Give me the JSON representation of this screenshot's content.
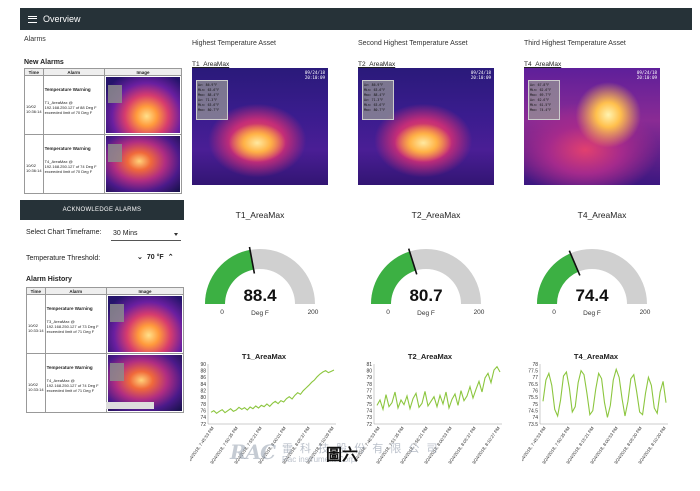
{
  "header": {
    "title": "Overview",
    "menu_icon": "hamburger-menu-icon",
    "bg": "#263238"
  },
  "alarms": {
    "section_label": "Alarms",
    "new_title": "New Alarms",
    "columns": [
      "Time",
      "Alarm",
      "Image"
    ],
    "rows": [
      {
        "time": "10/02 10:36:14",
        "type": "Temperature Warning",
        "desc": "T1_AreaMax @ 192.168.250.127 of 88 Deg F exceeded limit of 70 Deg F"
      },
      {
        "time": "10/02 10:36:14",
        "type": "Temperature Warning",
        "desc": "T4_AreaMax @ 192.168.250.127 of 74 Deg F exceeded limit of 70 Deg F"
      }
    ],
    "ack_button": "ACKNOWLEDGE ALARMS"
  },
  "controls": {
    "timeframe_label": "Select Chart Timeframe:",
    "timeframe_value": "30 Mins",
    "threshold_label": "Temperature Threshold:",
    "threshold_value": "70 °F"
  },
  "history": {
    "title": "Alarm History",
    "columns": [
      "Time",
      "Alarm",
      "Image"
    ],
    "rows": [
      {
        "time": "10/02 10:33:14",
        "type": "Temperature Warning",
        "desc": "T3_AreaMax @ 192.168.250.127 of 73 Deg F exceeded limit of 71 Deg F"
      },
      {
        "time": "10/02 10:33:14",
        "type": "Temperature Warning",
        "desc": "T4_AreaMax @ 192.168.250.127 of 74 Deg F exceeded limit of 71 Deg F"
      }
    ]
  },
  "assets": [
    {
      "heading": "Highest Temperature Asset",
      "cam_label": "T1_AreaMax",
      "stamp_date": "09/24/18",
      "stamp_time": "20:10:09",
      "overlay": [
        "Av:  86.9°F",
        "Min: 63.6°F",
        "Max: 88.4°F",
        "Av:  71.3°F",
        "Min: 63.6°F",
        "Max: 80.7°F"
      ],
      "gauge_title": "T1_AreaMax",
      "gauge_value": "88.4",
      "gauge_value_num": 88.4,
      "unit": "Deg F",
      "gauge_min": "0",
      "gauge_max": "200",
      "chart_title": "T1_AreaMax"
    },
    {
      "heading": "Second Highest Temperature Asset",
      "cam_label": "T2_AreaMax",
      "stamp_date": "09/24/18",
      "stamp_time": "20:10:09",
      "overlay": [
        "Av:  86.9°F",
        "Min: 63.6°F",
        "Max: 88.4°F",
        "Av:  71.3°F",
        "Min: 63.6°F",
        "Max: 80.7°F"
      ],
      "gauge_title": "T2_AreaMax",
      "gauge_value": "80.7",
      "gauge_value_num": 80.7,
      "unit": "Deg F",
      "gauge_min": "0",
      "gauge_max": "200",
      "chart_title": "T2_AreaMax"
    },
    {
      "heading": "Third Highest Temperature Asset",
      "cam_label": "T4_AreaMax",
      "stamp_date": "09/24/18",
      "stamp_time": "20:10:09",
      "overlay": [
        "Av:  67.8°F",
        "Min: 62.6°F",
        "Max: 69.7°F",
        "Av:  62.6°F",
        "Min: 61.5°F",
        "Max: 74.4°F"
      ],
      "gauge_title": "T4_AreaMax",
      "gauge_value": "74.4",
      "gauge_value_num": 74.4,
      "unit": "Deg F",
      "gauge_min": "0",
      "gauge_max": "200",
      "chart_title": "T4_AreaMax"
    }
  ],
  "colors": {
    "gauge_fill": "#3cb043",
    "gauge_track": "#d0d0d0",
    "line": "#8cc63f",
    "dark": "#263238"
  },
  "watermark": {
    "logo": "RAC",
    "name": "雷 科 技 股 份 有 限 公 司",
    "sub": "Rac instrument Corp.",
    "figure": "圖六"
  },
  "chart_data": [
    {
      "type": "line",
      "title": "T1_AreaMax",
      "ylim": [
        72,
        90
      ],
      "yticks": [
        72,
        74,
        76,
        78,
        80,
        82,
        84,
        86,
        88,
        90
      ],
      "xticks": [
        "9/24/2018, 7:45:53 PM",
        "9/24/2018, 7:50:35 PM",
        "9/24/2018, 7:55:21 PM",
        "9/24/2018, 8:00:01 PM",
        "9/24/2018, 8:05:37 PM",
        "9/24/2018, 8:10:09 PM"
      ],
      "series": [
        {
          "values": [
            75.5,
            76,
            75.2,
            75.8,
            76.3,
            75.4,
            76,
            76.6,
            75.8,
            76.2,
            77,
            76.4,
            76.9,
            76.2,
            77.1,
            76.6,
            77.4,
            76.8,
            77.6,
            77.2,
            78,
            77.3,
            78.2,
            78.8,
            78.1,
            79,
            78.6,
            79.6,
            80.2,
            79.5,
            80.6,
            81.4,
            80.9,
            82,
            82.8,
            83.6,
            84.5,
            85.2,
            86.2,
            87,
            87.6,
            88,
            87.4,
            87.8,
            88.2
          ]
        }
      ]
    },
    {
      "type": "line",
      "title": "T2_AreaMax",
      "ylim": [
        72,
        81
      ],
      "yticks": [
        72,
        73,
        74,
        75,
        76,
        77,
        78,
        79,
        80,
        81
      ],
      "xticks": [
        "9/24/2018, 7:46:53 PM",
        "9/24/2018, 7:51:35 PM",
        "9/24/2018, 7:56:21 PM",
        "9/24/2018, 8:00:53 PM",
        "9/24/2018, 8:05:37 PM",
        "9/24/2018, 8:10:27 PM"
      ],
      "series": [
        {
          "values": [
            74.8,
            75.6,
            74.2,
            76.4,
            74.6,
            75.2,
            76.8,
            74.4,
            75.6,
            74.9,
            76.2,
            74.3,
            75.8,
            76.6,
            74.5,
            75.1,
            76.9,
            74.7,
            75.4,
            76.1,
            74.6,
            76.3,
            75.0,
            76.8,
            74.4,
            75.7,
            76.5,
            74.8,
            77.0,
            75.5,
            76.2,
            77.6,
            75.9,
            77.2,
            78.4,
            76.8,
            78.9,
            79.6,
            78.2,
            80.1,
            80.6,
            79.8
          ]
        }
      ]
    },
    {
      "type": "line",
      "title": "T4_AreaMax",
      "ylim": [
        73.5,
        78
      ],
      "yticks": [
        73.5,
        74,
        74.5,
        75,
        75.5,
        76,
        76.5,
        77,
        77.5,
        78
      ],
      "xticks": [
        "9/24/2018, 7:45:53 PM",
        "9/24/2018, 7:50:35 PM",
        "9/24/2018, 8:15:21 PM",
        "9/24/2018, 8:00:53 PM",
        "9/24/2018, 8:05:20 PM",
        "9/24/2018, 8:10:20 PM"
      ],
      "series": [
        {
          "values": [
            75.2,
            76.8,
            77.3,
            76.4,
            74.6,
            74.1,
            75.3,
            77.1,
            77.4,
            76.2,
            74.4,
            74.8,
            76.6,
            77.5,
            77.2,
            75.8,
            74.2,
            74.5,
            76.1,
            77.3,
            76.9,
            75.1,
            74.0,
            74.9,
            76.8,
            77.6,
            77.0,
            75.4,
            74.1,
            75.2,
            76.9,
            77.2,
            75.9,
            74.4,
            74.2,
            75.8,
            77.0,
            76.4,
            74.7,
            74.3,
            75.9,
            76.7,
            75.1
          ]
        }
      ]
    }
  ]
}
